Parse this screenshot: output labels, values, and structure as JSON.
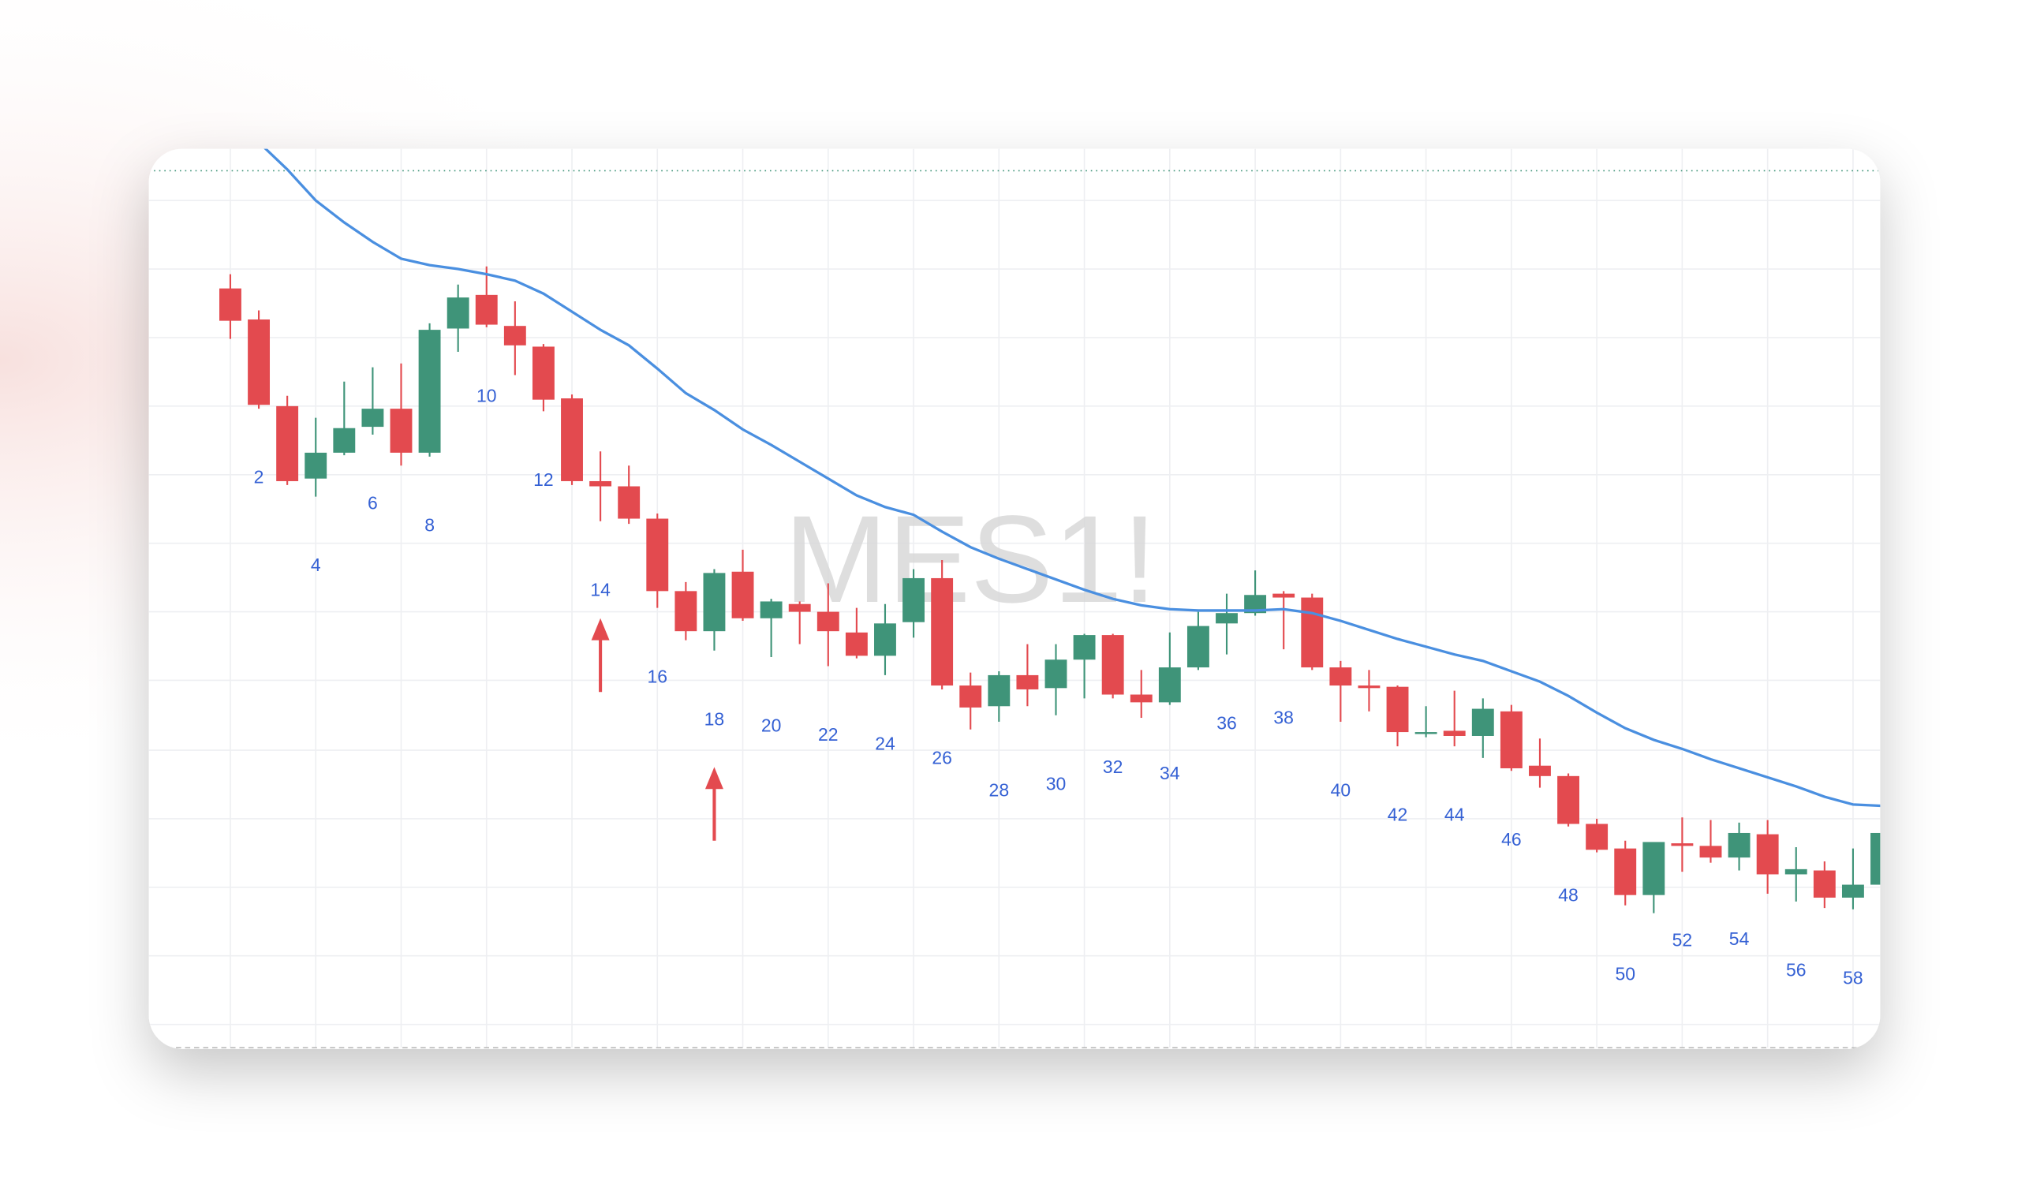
{
  "chart_data": {
    "type": "candlestick",
    "watermark": "MES1!",
    "x": [
      1,
      2,
      3,
      4,
      5,
      6,
      7,
      8,
      9,
      10,
      11,
      12,
      13,
      14,
      15,
      16,
      17,
      18,
      19,
      20,
      21,
      22,
      23,
      24,
      25,
      26,
      27,
      28,
      29,
      30,
      31,
      32,
      33,
      34,
      35,
      36,
      37,
      38,
      39,
      40,
      41,
      42,
      43,
      44,
      45,
      46,
      47,
      48,
      49,
      50,
      51,
      52,
      53,
      54,
      55,
      56,
      57,
      58,
      59
    ],
    "open": [
      587,
      563,
      496,
      440,
      460,
      480,
      494,
      460,
      556,
      582,
      558,
      542,
      502,
      438,
      434,
      409,
      353,
      322,
      368,
      332,
      343,
      337,
      321,
      303,
      329,
      363,
      280,
      264,
      288,
      278,
      300,
      319,
      273,
      267,
      294,
      328,
      336,
      351,
      348,
      294,
      280,
      279,
      243,
      245,
      241,
      260,
      218,
      210,
      173,
      154,
      118,
      158,
      156,
      147,
      165,
      134,
      137,
      116,
      126
    ],
    "high": [
      598,
      570,
      504,
      487,
      515,
      526,
      529,
      560,
      590,
      604,
      577,
      544,
      505,
      461,
      450,
      413,
      360,
      370,
      385,
      347,
      345,
      359,
      340,
      343,
      370,
      377,
      290,
      291,
      312,
      312,
      320,
      320,
      292,
      321,
      337,
      351,
      369,
      353,
      351,
      299,
      292,
      280,
      264,
      276,
      270,
      265,
      239,
      212,
      177,
      160,
      159,
      178,
      176,
      174,
      176,
      155,
      144,
      154,
      170
    ],
    "low": [
      548,
      494,
      435,
      426,
      458,
      474,
      450,
      457,
      538,
      557,
      520,
      492,
      435,
      407,
      405,
      340,
      315,
      307,
      330,
      302,
      312,
      295,
      301,
      288,
      317,
      277,
      246,
      252,
      264,
      257,
      270,
      270,
      255,
      265,
      292,
      304,
      334,
      308,
      292,
      252,
      260,
      233,
      240,
      233,
      224,
      214,
      201,
      171,
      151,
      110,
      104,
      136,
      143,
      137,
      119,
      113,
      108,
      107,
      120
    ],
    "close": [
      562,
      497,
      438,
      460,
      479,
      494,
      460,
      555,
      580,
      559,
      543,
      501,
      438,
      434,
      409,
      353,
      322,
      367,
      332,
      345,
      337,
      322,
      303,
      328,
      363,
      280,
      263,
      288,
      277,
      300,
      319,
      273,
      267,
      294,
      326,
      336,
      350,
      348,
      294,
      280,
      278,
      244,
      244,
      241,
      262,
      216,
      210,
      173,
      153,
      118,
      159,
      156,
      147,
      166,
      134,
      138,
      116,
      126,
      166
    ],
    "up_color": "#3f9479",
    "down_color": "#e34a4f",
    "ma": {
      "color": "#4a8fe0",
      "values": [
        null,
        700,
        679,
        655,
        638,
        623,
        610,
        605,
        602,
        598,
        593,
        583,
        569,
        555,
        543,
        525,
        506,
        493,
        478,
        466,
        453,
        440,
        427,
        418,
        412,
        399,
        387,
        378,
        370,
        362,
        354,
        347,
        342,
        339,
        338,
        338,
        338,
        339,
        336,
        330,
        323,
        316,
        310,
        304,
        299,
        291,
        283,
        272,
        259,
        247,
        238,
        231,
        223,
        216,
        209,
        202,
        194,
        188,
        187
      ]
    },
    "index_labels": [
      2,
      4,
      6,
      8,
      10,
      12,
      14,
      16,
      18,
      20,
      22,
      24,
      26,
      28,
      30,
      32,
      34,
      36,
      38,
      40,
      42,
      44,
      46,
      48,
      50,
      52,
      54,
      56,
      58
    ],
    "markers": [
      {
        "x": 14,
        "y": 332
      },
      {
        "x": 18,
        "y": 217
      }
    ],
    "marker_color": "#e34a4f",
    "price_line": 678,
    "xlim": [
      -1.8636,
      58.9545
    ],
    "ylim": [
      0,
      695
    ],
    "xgrid": [
      1,
      4,
      7,
      10,
      13,
      16,
      19,
      22,
      25,
      28,
      31,
      34,
      37,
      40,
      43,
      46,
      49,
      52,
      55,
      58
    ],
    "ygrid": [
      655,
      602,
      549,
      496,
      443,
      390,
      337,
      284,
      230,
      177,
      124,
      71,
      18
    ]
  }
}
